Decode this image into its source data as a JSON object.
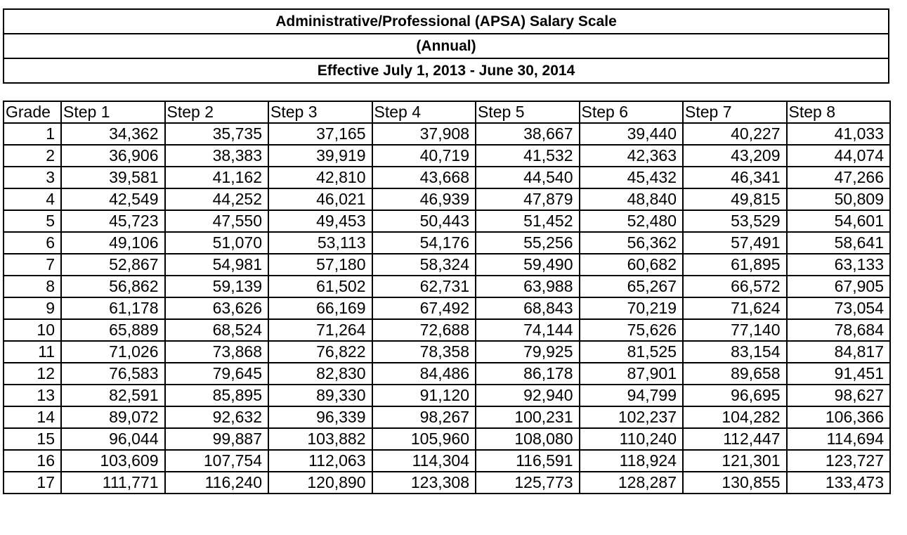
{
  "header": {
    "title": "Administrative/Professional (APSA) Salary Scale",
    "subtitle": "(Annual)",
    "effective": "Effective July 1, 2013 - June 30, 2014"
  },
  "table": {
    "columns": [
      "Grade",
      "Step 1",
      "Step 2",
      "Step 3",
      "Step 4",
      "Step 5",
      "Step 6",
      "Step 7",
      "Step 8"
    ],
    "rows": [
      [
        "1",
        "34,362",
        "35,735",
        "37,165",
        "37,908",
        "38,667",
        "39,440",
        "40,227",
        "41,033"
      ],
      [
        "2",
        "36,906",
        "38,383",
        "39,919",
        "40,719",
        "41,532",
        "42,363",
        "43,209",
        "44,074"
      ],
      [
        "3",
        "39,581",
        "41,162",
        "42,810",
        "43,668",
        "44,540",
        "45,432",
        "46,341",
        "47,266"
      ],
      [
        "4",
        "42,549",
        "44,252",
        "46,021",
        "46,939",
        "47,879",
        "48,840",
        "49,815",
        "50,809"
      ],
      [
        "5",
        "45,723",
        "47,550",
        "49,453",
        "50,443",
        "51,452",
        "52,480",
        "53,529",
        "54,601"
      ],
      [
        "6",
        "49,106",
        "51,070",
        "53,113",
        "54,176",
        "55,256",
        "56,362",
        "57,491",
        "58,641"
      ],
      [
        "7",
        "52,867",
        "54,981",
        "57,180",
        "58,324",
        "59,490",
        "60,682",
        "61,895",
        "63,133"
      ],
      [
        "8",
        "56,862",
        "59,139",
        "61,502",
        "62,731",
        "63,988",
        "65,267",
        "66,572",
        "67,905"
      ],
      [
        "9",
        "61,178",
        "63,626",
        "66,169",
        "67,492",
        "68,843",
        "70,219",
        "71,624",
        "73,054"
      ],
      [
        "10",
        "65,889",
        "68,524",
        "71,264",
        "72,688",
        "74,144",
        "75,626",
        "77,140",
        "78,684"
      ],
      [
        "11",
        "71,026",
        "73,868",
        "76,822",
        "78,358",
        "79,925",
        "81,525",
        "83,154",
        "84,817"
      ],
      [
        "12",
        "76,583",
        "79,645",
        "82,830",
        "84,486",
        "86,178",
        "87,901",
        "89,658",
        "91,451"
      ],
      [
        "13",
        "82,591",
        "85,895",
        "89,330",
        "91,120",
        "92,940",
        "94,799",
        "96,695",
        "98,627"
      ],
      [
        "14",
        "89,072",
        "92,632",
        "96,339",
        "98,267",
        "100,231",
        "102,237",
        "104,282",
        "106,366"
      ],
      [
        "15",
        "96,044",
        "99,887",
        "103,882",
        "105,960",
        "108,080",
        "110,240",
        "112,447",
        "114,694"
      ],
      [
        "16",
        "103,609",
        "107,754",
        "112,063",
        "114,304",
        "116,591",
        "118,924",
        "121,301",
        "123,727"
      ],
      [
        "17",
        "111,771",
        "116,240",
        "120,890",
        "123,308",
        "125,773",
        "128,287",
        "130,855",
        "133,473"
      ]
    ]
  }
}
